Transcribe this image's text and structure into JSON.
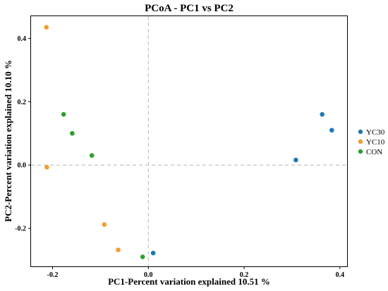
{
  "chart_data": {
    "type": "scatter",
    "title": "PCoA - PC1 vs PC2",
    "xlabel": "PC1-Percent variation explained 10.51 %",
    "ylabel": "PC2-Percent variation explained 10.10 %",
    "xlim": [
      -0.245,
      0.415
    ],
    "ylim": [
      -0.32,
      0.47
    ],
    "xticks": [
      -0.2,
      0.0,
      0.2,
      0.4
    ],
    "xtick_labels": [
      "-0.2",
      "0.0",
      "0.2",
      "0.4"
    ],
    "yticks": [
      -0.2,
      0.0,
      0.2,
      0.4
    ],
    "ytick_labels": [
      "-0.2",
      "0.0",
      "0.2",
      "0.4"
    ],
    "reference_lines": {
      "x": 0,
      "y": 0,
      "style": "dashed"
    },
    "grid": false,
    "legend_position": "right",
    "series": [
      {
        "name": "YC30",
        "color": "#1F77B4",
        "points": [
          [
            0.01,
            -0.278
          ],
          [
            0.308,
            0.016
          ],
          [
            0.363,
            0.16
          ],
          [
            0.383,
            0.11
          ]
        ]
      },
      {
        "name": "YC10",
        "color": "#F39C2E",
        "points": [
          [
            -0.213,
            0.435
          ],
          [
            -0.212,
            -0.007
          ],
          [
            -0.092,
            -0.188
          ],
          [
            -0.063,
            -0.268
          ]
        ]
      },
      {
        "name": "CON",
        "color": "#2CA02C",
        "points": [
          [
            -0.177,
            0.16
          ],
          [
            -0.159,
            0.1
          ],
          [
            -0.118,
            0.03
          ],
          [
            -0.012,
            -0.29
          ]
        ]
      }
    ]
  }
}
